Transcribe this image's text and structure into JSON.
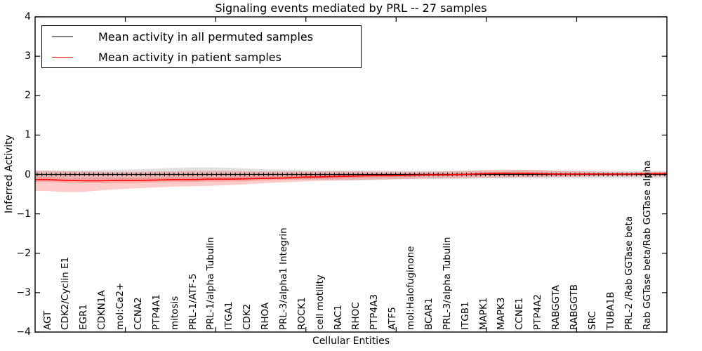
{
  "title": "Signaling events mediated by PRL -- 27 samples",
  "legend": {
    "items": [
      {
        "label": "Mean activity in all permuted samples",
        "color": "#000000"
      },
      {
        "label": "Mean activity in patient samples",
        "color": "#ff0000"
      }
    ]
  },
  "colors": {
    "permuted_line": "#000000",
    "patient_line": "#ff0000",
    "permuted_band": "#c8c8c8",
    "patient_band": "#ff0000",
    "axis": "#000000"
  },
  "chart_data": {
    "type": "line",
    "title": "Signaling events mediated by PRL -- 27 samples",
    "xlabel": "Cellular Entities",
    "ylabel": "Inferred Activity",
    "ylim": [
      -4,
      4
    ],
    "xlim": [
      0,
      35
    ],
    "grid": false,
    "legend_position": "upper left",
    "yticks": [
      {
        "label": "4",
        "value": 4
      },
      {
        "label": "3",
        "value": 3
      },
      {
        "label": "2",
        "value": 2
      },
      {
        "label": "1",
        "value": 1
      },
      {
        "label": "0",
        "value": 0
      },
      {
        "label": "−1",
        "value": -1
      },
      {
        "label": "−2",
        "value": -2
      },
      {
        "label": "−3",
        "value": -3
      },
      {
        "label": "−4",
        "value": -4
      }
    ],
    "unlabeled_xtick_values": [
      5,
      10,
      15,
      20,
      25,
      30
    ],
    "categories": [
      "AGT",
      "CDK2/Cyclin E1",
      "EGR1",
      "CDKN1A",
      "mol:Ca2+",
      "CCNA2",
      "PTP4A1",
      "mitosis",
      "PRL-1/ATF-5",
      "PRL-1/alpha Tubulin",
      "ITGA1",
      "CDK2",
      "RHOA",
      "PRL-3/alpha1 Integrin",
      "ROCK1",
      "cell motility",
      "RAC1",
      "RHOC",
      "PTP4A3",
      "ATF5",
      "mol:Halofuginone",
      "BCAR1",
      "PRL-3/alpha Tubulin",
      "ITGB1",
      "MAPK1",
      "MAPK3",
      "CCNE1",
      "PTP4A2",
      "RABGGTA",
      "RABGGTB",
      "SRC",
      "TUBA1B",
      "PRL-2 /Rab GGTase beta",
      "Rab GGTase beta/Rab GGTase alpha"
    ],
    "series": [
      {
        "name": "Mean activity in all permuted samples",
        "color": "#000000",
        "marker": "|",
        "values": [
          0,
          0,
          0,
          0,
          0,
          0,
          0,
          0,
          0,
          0,
          0,
          0,
          0,
          0,
          0,
          0,
          0,
          0,
          0,
          0,
          0,
          0,
          0,
          0,
          0,
          0,
          0,
          0,
          0,
          0,
          0,
          0,
          0,
          0
        ]
      },
      {
        "name": "Mean activity in patient samples",
        "color": "#ff0000",
        "marker": "none",
        "values": [
          -0.13,
          -0.15,
          -0.16,
          -0.16,
          -0.15,
          -0.15,
          -0.14,
          -0.13,
          -0.13,
          -0.12,
          -0.12,
          -0.11,
          -0.1,
          -0.09,
          -0.07,
          -0.06,
          -0.05,
          -0.04,
          -0.03,
          -0.03,
          -0.02,
          -0.01,
          -0.01,
          0.0,
          0.02,
          0.03,
          0.03,
          0.02,
          0.01,
          0.01,
          0.01,
          0.01,
          0.01,
          0.02
        ]
      }
    ],
    "bands": [
      {
        "name": "permuted-samples-spread",
        "color": "#c8c8c8",
        "opacity": 0.55,
        "upper": [
          0.1,
          0.1,
          0.1,
          0.11,
          0.12,
          0.13,
          0.15,
          0.17,
          0.18,
          0.18,
          0.17,
          0.15,
          0.13,
          0.12,
          0.11,
          0.1,
          0.1,
          0.1,
          0.1,
          0.09,
          0.09,
          0.09,
          0.09,
          0.09,
          0.1,
          0.1,
          0.11,
          0.11,
          0.1,
          0.1,
          0.1,
          0.09,
          0.09,
          0.09
        ],
        "lower": [
          -0.1,
          -0.1,
          -0.11,
          -0.11,
          -0.11,
          -0.11,
          -0.11,
          -0.11,
          -0.11,
          -0.11,
          -0.11,
          -0.11,
          -0.11,
          -0.12,
          -0.13,
          -0.14,
          -0.15,
          -0.15,
          -0.14,
          -0.13,
          -0.12,
          -0.12,
          -0.11,
          -0.11,
          -0.1,
          -0.1,
          -0.1,
          -0.1,
          -0.1,
          -0.1,
          -0.1,
          -0.1,
          -0.1,
          -0.1
        ]
      },
      {
        "name": "patient-samples-spread-outer",
        "color": "#ff0000",
        "opacity": 0.2,
        "upper": [
          0.09,
          0.08,
          0.08,
          0.07,
          0.07,
          0.07,
          0.08,
          0.08,
          0.09,
          0.09,
          0.09,
          0.08,
          0.08,
          0.08,
          0.08,
          0.08,
          0.08,
          0.08,
          0.07,
          0.07,
          0.07,
          0.07,
          0.08,
          0.09,
          0.11,
          0.12,
          0.12,
          0.11,
          0.09,
          0.08,
          0.07,
          0.06,
          0.06,
          0.07
        ],
        "lower": [
          -0.42,
          -0.45,
          -0.44,
          -0.4,
          -0.37,
          -0.35,
          -0.33,
          -0.31,
          -0.3,
          -0.29,
          -0.27,
          -0.25,
          -0.22,
          -0.2,
          -0.18,
          -0.16,
          -0.15,
          -0.14,
          -0.13,
          -0.12,
          -0.11,
          -0.1,
          -0.1,
          -0.09,
          -0.08,
          -0.08,
          -0.07,
          -0.07,
          -0.06,
          -0.06,
          -0.05,
          -0.05,
          -0.05,
          -0.05
        ]
      },
      {
        "name": "patient-samples-spread-inner",
        "color": "#ff0000",
        "opacity": 0.2,
        "upper": [
          -0.07,
          -0.09,
          -0.1,
          -0.1,
          -0.09,
          -0.09,
          -0.08,
          -0.07,
          -0.07,
          -0.06,
          -0.06,
          -0.05,
          -0.05,
          -0.04,
          -0.02,
          -0.01,
          0.0,
          0.0,
          0.01,
          0.01,
          0.02,
          0.02,
          0.02,
          0.03,
          0.05,
          0.06,
          0.06,
          0.05,
          0.04,
          0.03,
          0.03,
          0.03,
          0.03,
          0.04
        ],
        "lower": [
          -0.19,
          -0.21,
          -0.22,
          -0.22,
          -0.21,
          -0.21,
          -0.2,
          -0.19,
          -0.19,
          -0.18,
          -0.18,
          -0.17,
          -0.15,
          -0.14,
          -0.12,
          -0.11,
          -0.1,
          -0.08,
          -0.07,
          -0.07,
          -0.06,
          -0.04,
          -0.04,
          -0.03,
          -0.01,
          0.0,
          0.0,
          -0.01,
          -0.02,
          -0.01,
          -0.01,
          -0.01,
          -0.01,
          0.0
        ]
      }
    ]
  }
}
